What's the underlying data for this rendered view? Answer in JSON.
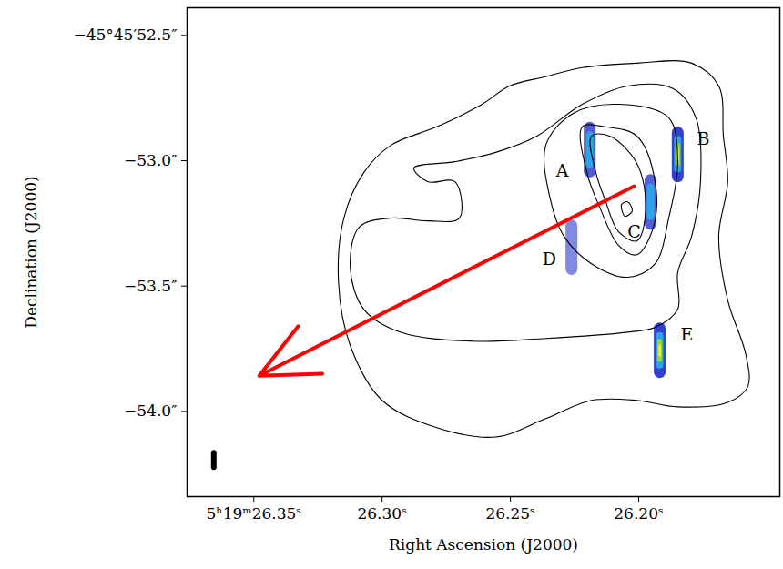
{
  "chart_data": {
    "type": "contour",
    "xlabel": "Right Ascension (J2000)",
    "ylabel": "Declination (J2000)",
    "xlim": [
      26.376,
      26.145
    ],
    "ylim": [
      -54.34,
      -52.39
    ],
    "xticks": [
      {
        "value": 26.35,
        "label": "5ʰ19ᵐ26.35ˢ"
      },
      {
        "value": 26.3,
        "label": "26.30ˢ"
      },
      {
        "value": 26.25,
        "label": "26.25ˢ"
      },
      {
        "value": 26.2,
        "label": "26.20ˢ"
      }
    ],
    "yticks": [
      {
        "value": -52.5,
        "label": "−45°45′52.5″"
      },
      {
        "value": -53.0,
        "label": "−53.0″"
      },
      {
        "value": -53.5,
        "label": "−53.5″"
      },
      {
        "value": -54.0,
        "label": "−54.0″"
      }
    ],
    "contours": {
      "color": "black",
      "paths": [
        [
          [
            26.2504,
            -52.702
          ],
          [
            26.2362,
            -52.665
          ],
          [
            26.222,
            -52.629
          ],
          [
            26.2007,
            -52.611
          ],
          [
            26.1794,
            -52.611
          ],
          [
            26.1688,
            -52.702
          ],
          [
            26.167,
            -52.902
          ],
          [
            26.1653,
            -53.084
          ],
          [
            26.1688,
            -53.302
          ],
          [
            26.1653,
            -53.556
          ],
          [
            26.1582,
            -53.775
          ],
          [
            26.1575,
            -53.902
          ],
          [
            26.1653,
            -53.964
          ],
          [
            26.1848,
            -53.982
          ],
          [
            26.2007,
            -53.956
          ],
          [
            26.2184,
            -53.956
          ],
          [
            26.2362,
            -54.029
          ],
          [
            26.2557,
            -54.102
          ],
          [
            26.2787,
            -54.065
          ],
          [
            26.3,
            -53.956
          ],
          [
            26.3124,
            -53.738
          ],
          [
            26.317,
            -53.484
          ],
          [
            26.3149,
            -53.229
          ],
          [
            26.3071,
            -53.047
          ],
          [
            26.2965,
            -52.938
          ],
          [
            26.2787,
            -52.865
          ],
          [
            26.261,
            -52.775
          ]
        ],
        [
          [
            26.2876,
            -53.029
          ],
          [
            26.2716,
            -53.004
          ],
          [
            26.2557,
            -52.967
          ],
          [
            26.2397,
            -52.902
          ],
          [
            26.222,
            -52.775
          ],
          [
            26.2043,
            -52.702
          ],
          [
            26.1865,
            -52.713
          ],
          [
            26.1777,
            -52.829
          ],
          [
            26.1759,
            -53.084
          ],
          [
            26.1794,
            -53.302
          ],
          [
            26.1848,
            -53.447
          ],
          [
            26.1848,
            -53.593
          ],
          [
            26.1936,
            -53.665
          ],
          [
            26.2043,
            -53.684
          ],
          [
            26.2362,
            -53.709
          ],
          [
            26.2645,
            -53.72
          ],
          [
            26.2929,
            -53.684
          ],
          [
            26.3071,
            -53.593
          ],
          [
            26.3124,
            -53.429
          ],
          [
            26.3089,
            -53.265
          ],
          [
            26.2965,
            -53.229
          ],
          [
            26.2823,
            -53.24
          ],
          [
            26.2699,
            -53.229
          ],
          [
            26.2716,
            -53.084
          ],
          [
            26.2823,
            -53.084
          ]
        ],
        [
          [
            26.2362,
            -52.938
          ],
          [
            26.2255,
            -52.811
          ],
          [
            26.2078,
            -52.775
          ],
          [
            26.1883,
            -52.829
          ],
          [
            26.1848,
            -53.011
          ],
          [
            26.1883,
            -53.229
          ],
          [
            26.1936,
            -53.411
          ],
          [
            26.2043,
            -53.465
          ],
          [
            26.2184,
            -53.411
          ],
          [
            26.2291,
            -53.302
          ],
          [
            26.2344,
            -53.156
          ]
        ],
        [
          [
            26.222,
            -52.865
          ],
          [
            26.2131,
            -52.865
          ],
          [
            26.2007,
            -52.902
          ],
          [
            26.1936,
            -53.084
          ],
          [
            26.1943,
            -53.265
          ],
          [
            26.2007,
            -53.375
          ],
          [
            26.2078,
            -53.338
          ],
          [
            26.2149,
            -53.193
          ],
          [
            26.2202,
            -53.047
          ]
        ],
        [
          [
            26.2184,
            -52.902
          ],
          [
            26.2113,
            -52.902
          ],
          [
            26.2007,
            -53.011
          ],
          [
            26.1972,
            -53.193
          ],
          [
            26.2007,
            -53.32
          ],
          [
            26.2078,
            -53.284
          ],
          [
            26.2131,
            -53.156
          ],
          [
            26.2167,
            -53.047
          ]
        ],
        [
          [
            26.2067,
            -53.175
          ],
          [
            26.2043,
            -53.164
          ],
          [
            26.2025,
            -53.2
          ],
          [
            26.2053,
            -53.222
          ]
        ]
      ]
    },
    "spots": [
      {
        "name": "A",
        "ra": 26.2191,
        "dec": -52.956,
        "intensity": 0.75,
        "label_ra": 26.2298,
        "label_dec": -53.04
      },
      {
        "name": "B",
        "ra": 26.1848,
        "dec": -52.975,
        "intensity": 1.0,
        "label_ra": 26.1748,
        "label_dec": -52.913
      },
      {
        "name": "C",
        "ra": 26.1954,
        "dec": -53.164,
        "intensity": 0.7,
        "label_ra": 26.2018,
        "label_dec": -53.284
      },
      {
        "name": "D",
        "ra": 26.2262,
        "dec": -53.345,
        "intensity": 0.3,
        "label_ra": 26.2348,
        "label_dec": -53.393
      },
      {
        "name": "E",
        "ra": 26.1918,
        "dec": -53.756,
        "intensity": 1.0,
        "label_ra": 26.1812,
        "label_dec": -53.695
      }
    ],
    "arrow": {
      "color": "red",
      "from": [
        26.2018,
        -53.102
      ],
      "to": [
        26.3479,
        -53.858
      ]
    }
  }
}
